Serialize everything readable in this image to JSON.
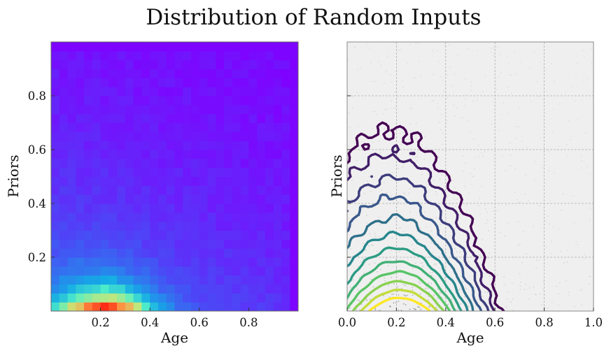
{
  "chart_data": [
    {
      "type": "heatmap",
      "title": "Distribution of Random Inputs",
      "xlabel": "Age",
      "ylabel": "Priors",
      "xlim": [
        0,
        1
      ],
      "ylim": [
        0,
        1
      ],
      "x_ticks": [
        "0.2",
        "0.4",
        "0.6",
        "0.8"
      ],
      "y_ticks": [
        "0.2",
        "0.4",
        "0.6",
        "0.8"
      ],
      "colormap": "rainbow",
      "bins": 30,
      "peak": {
        "x": 0.22,
        "y": 0.02
      }
    },
    {
      "type": "contour",
      "xlabel": "Age",
      "ylabel": "Priors",
      "xlim": [
        0,
        1
      ],
      "ylim": [
        0,
        1
      ],
      "x_ticks": [
        "0.0",
        "0.2",
        "0.4",
        "0.6",
        "0.8",
        "1.0"
      ],
      "y_ticks": [
        "",
        "",
        "",
        ""
      ],
      "grid": true,
      "colormap": "viridis",
      "levels": 12,
      "background": "#efefef"
    }
  ]
}
